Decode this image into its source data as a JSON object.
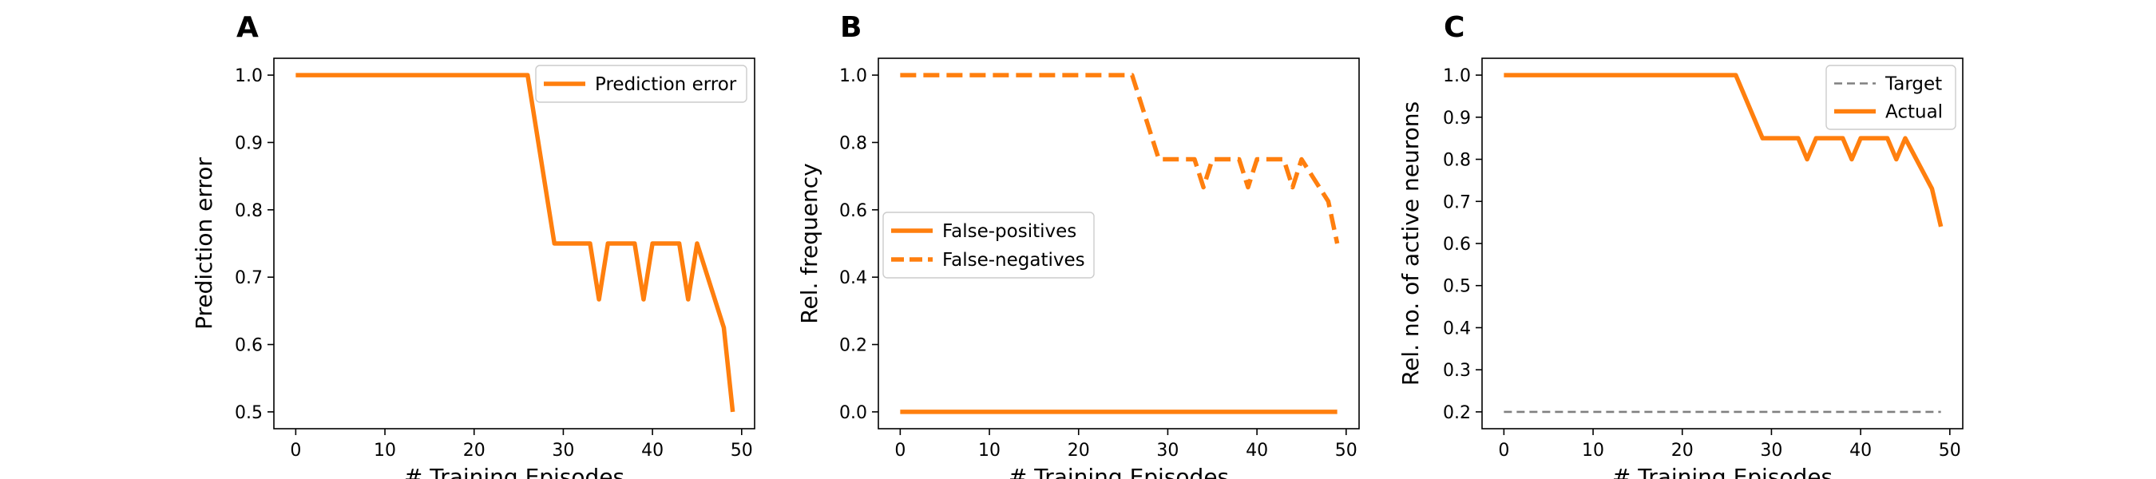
{
  "colors": {
    "orange": "#ff7f0e",
    "gray": "#808080",
    "axis": "#000000",
    "legend_border": "#cccccc"
  },
  "chart_data": [
    {
      "panel": "A",
      "type": "line",
      "xlabel": "# Training Episodes",
      "ylabel": "Prediction error",
      "xlim": [
        -2.45,
        51.45
      ],
      "ylim": [
        0.475,
        1.025
      ],
      "xticks": [
        0,
        10,
        20,
        30,
        40,
        50
      ],
      "yticks": [
        0.5,
        0.6,
        0.7,
        0.8,
        0.9,
        1.0
      ],
      "ytick_labels": [
        "0.5",
        "0.6",
        "0.7",
        "0.8",
        "0.9",
        "1.0"
      ],
      "grid": false,
      "legend": "upper-right",
      "series": [
        {
          "name": "Prediction error",
          "color": "#ff7f0e",
          "style": "solid",
          "x": [
            0,
            26,
            29,
            33,
            34,
            35,
            38,
            39,
            40,
            43,
            44,
            45,
            48,
            49
          ],
          "y": [
            1.0,
            1.0,
            0.75,
            0.75,
            0.667,
            0.75,
            0.75,
            0.667,
            0.75,
            0.75,
            0.667,
            0.75,
            0.625,
            0.5
          ]
        }
      ]
    },
    {
      "panel": "B",
      "type": "line",
      "xlabel": "# Training Episodes",
      "ylabel": "Rel. frequency",
      "xlim": [
        -2.45,
        51.45
      ],
      "ylim": [
        -0.05,
        1.05
      ],
      "xticks": [
        0,
        10,
        20,
        30,
        40,
        50
      ],
      "yticks": [
        0.0,
        0.2,
        0.4,
        0.6,
        0.8,
        1.0
      ],
      "ytick_labels": [
        "0.0",
        "0.2",
        "0.4",
        "0.6",
        "0.8",
        "1.0"
      ],
      "grid": false,
      "legend": "center-left",
      "series": [
        {
          "name": "False-positives",
          "color": "#ff7f0e",
          "style": "solid",
          "x": [
            0,
            49
          ],
          "y": [
            0.0,
            0.0
          ]
        },
        {
          "name": "False-negatives",
          "color": "#ff7f0e",
          "style": "dashed",
          "x": [
            0,
            26,
            29,
            33,
            34,
            35,
            38,
            39,
            40,
            43,
            44,
            45,
            48,
            49
          ],
          "y": [
            1.0,
            1.0,
            0.75,
            0.75,
            0.667,
            0.75,
            0.75,
            0.667,
            0.75,
            0.75,
            0.667,
            0.75,
            0.625,
            0.5
          ]
        }
      ]
    },
    {
      "panel": "C",
      "type": "line",
      "xlabel": "# Training Episodes",
      "ylabel": "Rel. no. of active neurons",
      "xlim": [
        -2.45,
        51.45
      ],
      "ylim": [
        0.16,
        1.04
      ],
      "xticks": [
        0,
        10,
        20,
        30,
        40,
        50
      ],
      "yticks": [
        0.2,
        0.3,
        0.4,
        0.5,
        0.6,
        0.7,
        0.8,
        0.9,
        1.0
      ],
      "ytick_labels": [
        "0.2",
        "0.3",
        "0.4",
        "0.5",
        "0.6",
        "0.7",
        "0.8",
        "0.9",
        "1.0"
      ],
      "grid": false,
      "legend": "upper-right",
      "series": [
        {
          "name": "Target",
          "color": "#808080",
          "style": "dashed-thin",
          "x": [
            0,
            49
          ],
          "y": [
            0.2,
            0.2
          ]
        },
        {
          "name": "Actual",
          "color": "#ff7f0e",
          "style": "solid",
          "x": [
            0,
            26,
            29,
            33,
            34,
            35,
            38,
            39,
            40,
            43,
            44,
            45,
            48,
            49
          ],
          "y": [
            1.0,
            1.0,
            0.85,
            0.85,
            0.8,
            0.85,
            0.85,
            0.8,
            0.85,
            0.85,
            0.8,
            0.85,
            0.73,
            0.64
          ]
        }
      ]
    }
  ]
}
